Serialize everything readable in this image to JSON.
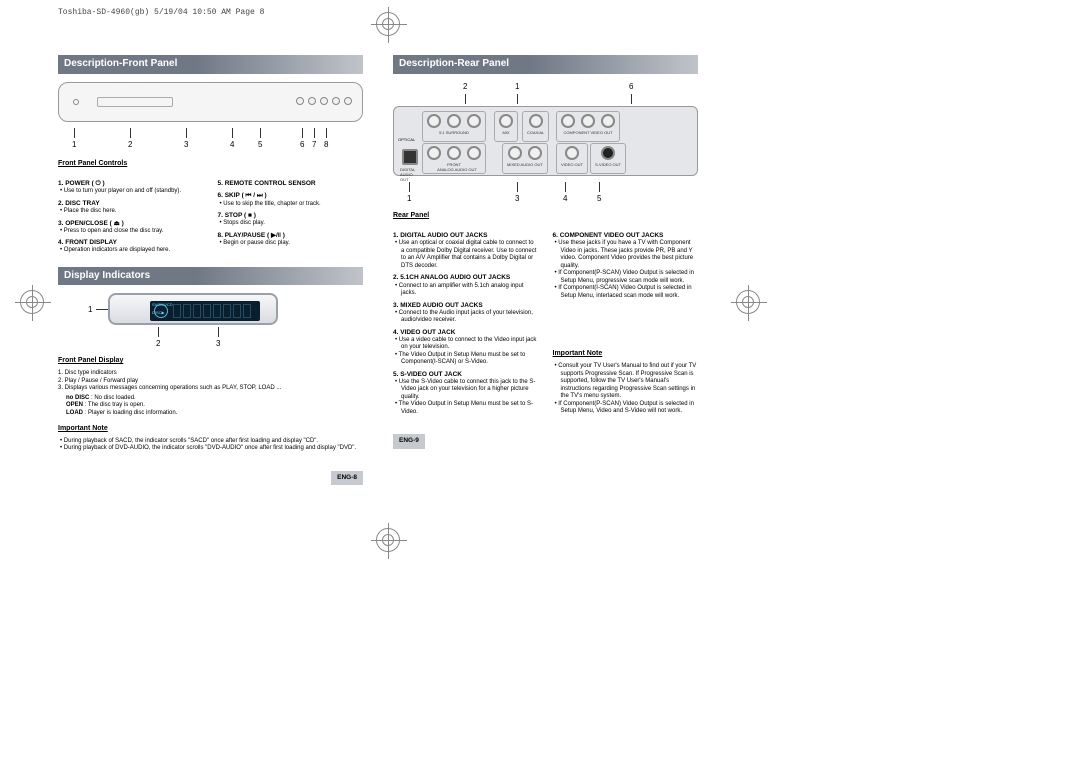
{
  "doc_header": "Toshiba-SD-4960(gb)  5/19/04 10:50 AM  Page 8",
  "left": {
    "section1_title": "Description-Front Panel",
    "front_callouts": [
      "1",
      "2",
      "3",
      "4",
      "5",
      "6",
      "7",
      "8"
    ],
    "controls_heading": "Front Panel Controls",
    "controls_col1": [
      {
        "title": "1. POWER ( ⏻ )",
        "lines": [
          "Use to turn your player on and off (standby)."
        ]
      },
      {
        "title": "2. DISC TRAY",
        "lines": [
          "Place the disc here."
        ]
      },
      {
        "title": "3. OPEN/CLOSE ( ⏏ )",
        "lines": [
          "Press to open and close the disc tray."
        ]
      },
      {
        "title": "4. FRONT DISPLAY",
        "lines": [
          "Operation indicators are displayed here."
        ]
      }
    ],
    "controls_col2": [
      {
        "title": "5. REMOTE CONTROL SENSOR",
        "lines": []
      },
      {
        "title": "6. SKIP ( ⏮ / ⏭ )",
        "lines": [
          "Use to skip the title, chapter or track."
        ]
      },
      {
        "title": "7. STOP ( ■ )",
        "lines": [
          "Stops disc play."
        ]
      },
      {
        "title": "8. PLAY/PAUSE ( ▶/‖ )",
        "lines": [
          "Begin or pause disc play."
        ]
      }
    ],
    "section2_title": "Display Indicators",
    "display_callouts": [
      "1",
      "2",
      "3"
    ],
    "lcd_text1": "SVCD/VCD",
    "lcd_text2": "DISC▶",
    "display_heading": "Front Panel Display",
    "display_items": [
      "1. Disc type indicators",
      "2. Play / Pause / Forward play",
      "3. Displays various messages concerning operations such as PLAY, STOP, LOAD ..."
    ],
    "display_defs": [
      {
        "k": "no DISC",
        "v": ": No disc loaded."
      },
      {
        "k": "OPEN",
        "v": ": The disc tray is open."
      },
      {
        "k": "LOAD",
        "v": ": Player is loading disc information."
      }
    ],
    "note_heading": "Important Note",
    "notes": [
      "During playback of SACD, the indicator scrolls \"SACD\" once after first loading and display \"CD\".",
      "During playback of DVD-AUDIO, the indicator scrolls \"DVD-AUDIO\" once after first loading and display \"DVD\"."
    ],
    "page_num": "ENG-8"
  },
  "right": {
    "section_title": "Description-Rear Panel",
    "top_callouts": [
      "2",
      "1",
      "6"
    ],
    "bottom_callouts": [
      "1",
      "3",
      "4",
      "5"
    ],
    "jack_groups": {
      "surround": "5.1 SURROUND",
      "front": "FRONT",
      "mix": "MIX",
      "coaxial": "COAXIAL",
      "component": "COMPONENT VIDEO OUT",
      "digital": "DIGITAL AUDIO OUT",
      "analog": "ANALOG AUDIO OUT",
      "mixed": "MIXED AUDIO OUT",
      "video": "VIDEO OUT",
      "svideo": "S-VIDEO OUT",
      "optical": "OPTICAL"
    },
    "rear_heading": "Rear Panel",
    "rear_col1": [
      {
        "title": "1. DIGITAL AUDIO OUT JACKS",
        "lines": [
          "Use an optical or coaxial digital cable to connect to a compatible Dolby Digital receiver. Use to connect to an A/V Amplifier that contains a Dolby Digital or DTS decoder."
        ]
      },
      {
        "title": "2. 5.1CH ANALOG AUDIO OUT JACKS",
        "lines": [
          "Connect to an amplifier with 5.1ch analog input jacks."
        ]
      },
      {
        "title": "3. MIXED AUDIO OUT JACKS",
        "lines": [
          "Connect to the Audio input jacks of your television, audio/video receiver."
        ]
      },
      {
        "title": "4. VIDEO OUT JACK",
        "lines": [
          "Use a video cable to connect to the Video input jack on your television.",
          "The Video Output in Setup Menu must be set to Component(I-SCAN) or S-Video."
        ]
      },
      {
        "title": "5. S-VIDEO OUT JACK",
        "lines": [
          "Use the S-Video cable to connect this jack to the S-Video jack on your television for a higher picture quality.",
          "The Video Output in Setup Menu must be set to S-Video."
        ]
      }
    ],
    "rear_col2": [
      {
        "title": "6. COMPONENT VIDEO OUT JACKS",
        "lines": [
          "Use these jacks if you have a TV with Component Video in jacks. These jacks provide PR, PB and Y video. Component Video provides the best picture quality.",
          "If Component(P-SCAN) Video Output is selected in Setup Menu, progressive scan mode will work.",
          "If Component(I-SCAN) Video Output is selected in Setup Menu, interlaced scan mode will work."
        ]
      }
    ],
    "note_heading": "Important Note",
    "notes": [
      "Consult your TV User's Manual to find out if your TV supports Progressive Scan. If Progressive Scan is supported, follow the TV User's Manual's instructions regarding Progressive Scan settings in the TV's menu system.",
      "If Component(P-SCAN) Video Output is selected in Setup Menu, Video and S-Video will not work."
    ],
    "page_num": "ENG-9"
  },
  "colors": {
    "header_grad_start": "#707885",
    "header_grad_end": "#c0c4ca",
    "page_bg": "#ffffff",
    "pagenum_bg": "#c6c9cf"
  }
}
